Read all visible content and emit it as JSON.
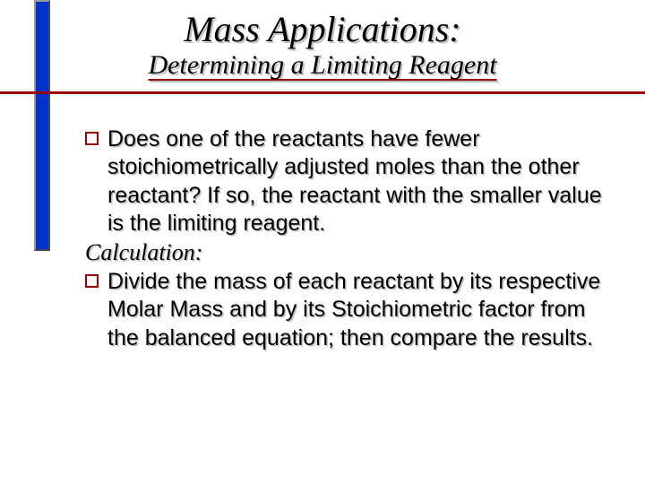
{
  "slide": {
    "title": "Mass Applications:",
    "subtitle": "Determining a Limiting Reagent",
    "accent_color": "#0033cc",
    "rule_color": "#990000",
    "background_color": "#ffffff",
    "title_font": "Times New Roman Italic",
    "title_fontsize": 40,
    "subtitle_fontsize": 30,
    "body_fontsize": 25,
    "shadow_color": "#c0c0c0",
    "bullet_marker_color": "#990000",
    "bullets": [
      {
        "text": "Does one of the reactants have fewer stoichiometrically adjusted moles than the other reactant? If so, the reactant with the smaller value is the limiting reagent."
      }
    ],
    "calc_label": "Calculation:",
    "calc_bullets": [
      {
        "text": "Divide the mass of each reactant by its respective Molar Mass and by its Stoichiometric factor from the balanced equation; then compare the results."
      }
    ]
  }
}
